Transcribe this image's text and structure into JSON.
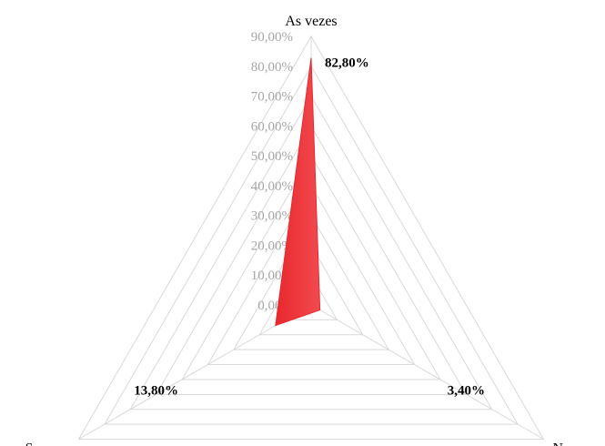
{
  "chart_data": {
    "type": "radar",
    "categories": [
      "As vezes",
      "Nunca",
      "Sempre"
    ],
    "series": [
      {
        "values": [
          82.8,
          3.4,
          13.8
        ],
        "labels": [
          "82,80%",
          "3,40%",
          "13,80%"
        ]
      }
    ],
    "axis": {
      "min": 0,
      "max": 90,
      "step": 10,
      "tick_labels": [
        "0,00%",
        "10,00%",
        "20,00%",
        "30,00%",
        "40,00%",
        "50,00%",
        "60,00%",
        "70,00%",
        "80,00%",
        "90,00%"
      ]
    },
    "grid": true,
    "legend": "none",
    "colors": {
      "series_fill": "#e8282e",
      "series_fill_light": "#f24a4f",
      "grid": "#d9d9d9",
      "tick_text": "#a6a6a6"
    }
  }
}
